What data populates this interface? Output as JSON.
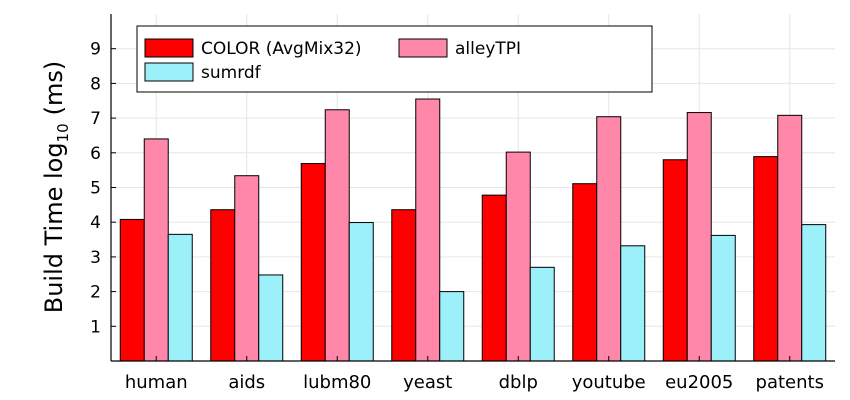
{
  "chart_data": {
    "type": "bar",
    "title": "",
    "xlabel": "",
    "ylabel": "Build Time log",
    "ylabel_subscript": "10",
    "ylabel_unit": "(ms)",
    "ylim": [
      0,
      10
    ],
    "yticks": [
      1,
      2,
      3,
      4,
      5,
      6,
      7,
      8,
      9
    ],
    "grid": true,
    "legend_position": "top-left",
    "categories": [
      "human",
      "aids",
      "lubm80",
      "yeast",
      "dblp",
      "youtube",
      "eu2005",
      "patents"
    ],
    "series": [
      {
        "name": "COLOR (AvgMix32)",
        "color": "#ff0000",
        "values": [
          4.08,
          4.36,
          5.69,
          4.36,
          4.78,
          5.11,
          5.8,
          5.89
        ]
      },
      {
        "name": "alleyTPI",
        "color": "#ff87a9",
        "values": [
          6.4,
          5.34,
          7.24,
          7.55,
          6.02,
          7.04,
          7.16,
          7.08
        ]
      },
      {
        "name": "sumrdf",
        "color": "#9bf0fa",
        "values": [
          3.65,
          2.48,
          3.99,
          2.0,
          2.7,
          3.32,
          3.62,
          3.93
        ]
      }
    ]
  }
}
